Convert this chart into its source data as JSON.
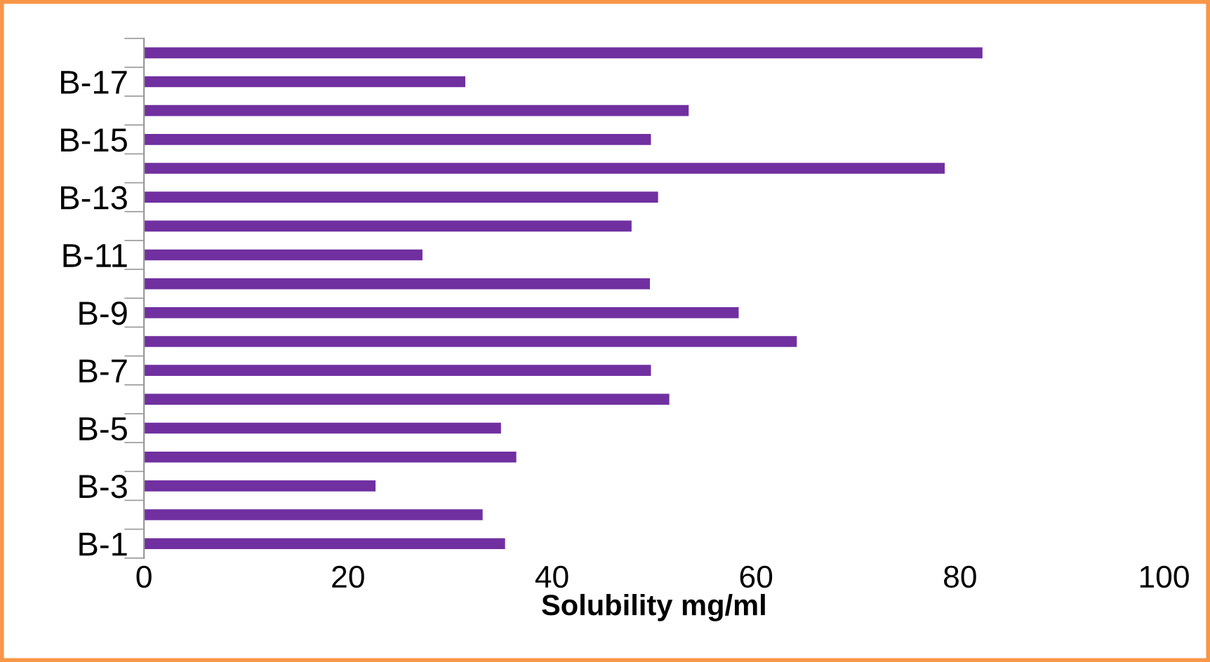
{
  "chart_data": {
    "type": "bar",
    "orientation": "horizontal",
    "xlabel": "Solubility mg/ml",
    "categories": [
      null,
      "B-17",
      null,
      "B-15",
      null,
      "B-13",
      null,
      "B-11",
      null,
      "B-9",
      null,
      "B-7",
      null,
      "B-5",
      null,
      "B-3",
      null,
      "B-1"
    ],
    "values": [
      82.2,
      31.5,
      53.4,
      49.7,
      78.5,
      50.4,
      47.8,
      27.3,
      49.6,
      58.3,
      64.0,
      49.7,
      51.5,
      35.0,
      36.5,
      22.7,
      33.2,
      35.4
    ],
    "color": "#7030a0",
    "xlim": [
      0,
      100
    ],
    "xticks": [
      0,
      20,
      40,
      60,
      80,
      100
    ],
    "grid": false,
    "legend": false
  }
}
